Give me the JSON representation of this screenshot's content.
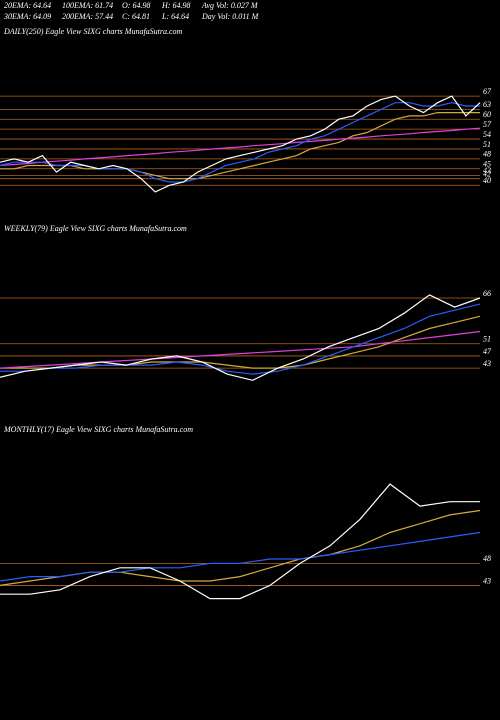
{
  "header": {
    "row1": [
      "20EMA: 64.64",
      "100EMA: 61.74",
      "O: 64.98",
      "H: 64.98",
      "Avg Vol: 0.027 M"
    ],
    "row2": [
      "30EMA: 64.09",
      "200EMA: 57.44",
      "C: 64.81",
      "L: 64.64",
      "Day Vol: 0.011 M"
    ]
  },
  "chart_data": [
    {
      "type": "line",
      "title": "DAILY(250) Eagle  View  SIXG charts MunafaSutra.com",
      "ylim": [
        31,
        84
      ],
      "yticks": [
        67,
        63,
        60,
        57,
        54,
        51,
        48,
        45,
        43,
        42,
        40
      ],
      "grid": true,
      "grid_color": "#b8651b",
      "series": [
        {
          "color": "#d4aa3a",
          "values": [
            45,
            45,
            46,
            46,
            46,
            46,
            45,
            45,
            45,
            45,
            44,
            43,
            42,
            42,
            42,
            43,
            44,
            45,
            46,
            47,
            48,
            49,
            51,
            52,
            53,
            55,
            56,
            58,
            60,
            61,
            61,
            62,
            62,
            62,
            62
          ]
        },
        {
          "color": "#e040e0",
          "values": [
            46,
            46.3,
            46.6,
            47,
            47.3,
            47.6,
            48,
            48.3,
            48.6,
            49,
            49.3,
            49.6,
            50,
            50.3,
            50.6,
            51,
            51.3,
            51.6,
            52,
            52.3,
            52.6,
            53,
            53.3,
            53.6,
            54,
            54.3,
            54.6,
            55,
            55.3,
            55.6,
            56,
            56.3,
            56.6,
            57,
            57.3
          ]
        },
        {
          "color": "#2a5cff",
          "values": [
            46,
            47,
            47,
            47,
            46,
            46,
            46,
            45,
            45,
            45,
            44,
            42,
            41,
            41,
            42,
            44,
            46,
            47,
            48,
            50,
            51,
            52,
            54,
            55,
            57,
            59,
            61,
            63,
            65,
            65,
            64,
            64,
            65,
            64,
            64
          ]
        },
        {
          "color": "#ffffff",
          "values": [
            47,
            48,
            47,
            49,
            44,
            47,
            46,
            45,
            46,
            45,
            42,
            38,
            40,
            41,
            44,
            46,
            48,
            49,
            50,
            51,
            52,
            54,
            55,
            57,
            60,
            61,
            64,
            66,
            67,
            64,
            62,
            65,
            67,
            61,
            65
          ]
        }
      ]
    },
    {
      "type": "line",
      "title": "WEEKLY(79) Eagle  View  SIXG charts MunafaSutra.com",
      "ylim": [
        26,
        85
      ],
      "yticks": [
        66,
        51,
        47,
        43
      ],
      "grid": true,
      "grid_color": "#b8651b",
      "series": [
        {
          "color": "#d4aa3a",
          "values": [
            43,
            43,
            43,
            44,
            44,
            44,
            45,
            45,
            45,
            44,
            43,
            43,
            44,
            46,
            48,
            50,
            53,
            56,
            58,
            60
          ]
        },
        {
          "color": "#e040e0",
          "values": [
            43,
            43.5,
            44,
            44.5,
            45,
            45.5,
            46,
            46.5,
            47,
            47.5,
            48,
            48.5,
            49,
            49.5,
            50,
            51,
            52,
            53,
            54,
            55
          ]
        },
        {
          "color": "#2a5cff",
          "values": [
            42,
            42,
            43,
            43,
            44,
            44,
            44,
            45,
            44,
            42,
            41,
            42,
            44,
            47,
            50,
            53,
            56,
            60,
            62,
            64
          ]
        },
        {
          "color": "#ffffff",
          "values": [
            40,
            42,
            43,
            44,
            45,
            44,
            46,
            47,
            45,
            41,
            39,
            43,
            46,
            50,
            53,
            56,
            61,
            67,
            63,
            66
          ]
        }
      ]
    },
    {
      "type": "line",
      "title": "MONTHLY(17) Eagle  View  SIXG charts MunafaSutra.com",
      "ylim": [
        17,
        76
      ],
      "yticks": [
        48,
        43
      ],
      "grid": true,
      "grid_color": "#b8651b",
      "series": [
        {
          "color": "#d4aa3a",
          "values": [
            43,
            44,
            45,
            46,
            46,
            45,
            44,
            44,
            45,
            47,
            49,
            50,
            52,
            55,
            57,
            59,
            60
          ]
        },
        {
          "color": "#2a5cff",
          "values": [
            44,
            45,
            45,
            46,
            46,
            47,
            47,
            48,
            48,
            49,
            49,
            50,
            51,
            52,
            53,
            54,
            55
          ]
        },
        {
          "color": "#ffffff",
          "values": [
            41,
            41,
            42,
            45,
            47,
            47,
            44,
            40,
            40,
            43,
            48,
            52,
            58,
            66,
            61,
            62,
            62
          ]
        }
      ]
    }
  ]
}
